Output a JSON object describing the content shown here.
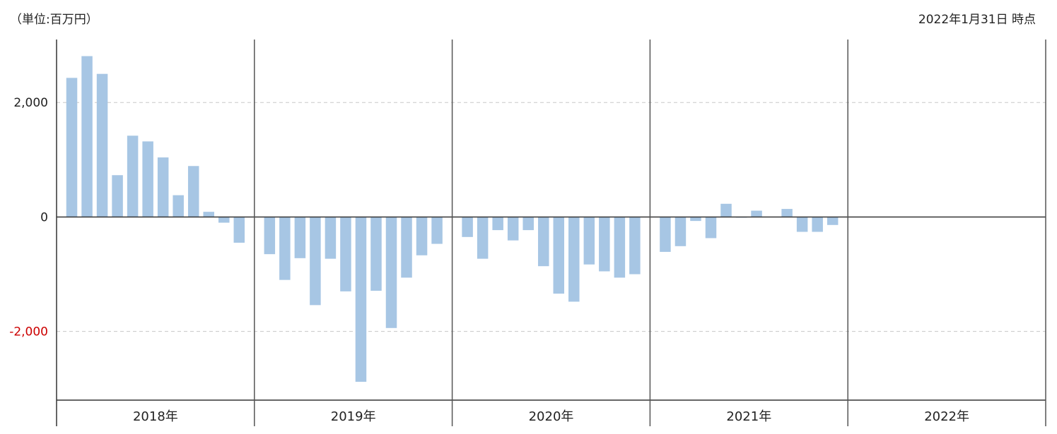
{
  "header": {
    "unit_label": "（単位:百万円）",
    "as_of_label": "2022年1月31日 時点"
  },
  "colors": {
    "bar": "#a7c6e4",
    "negative_tick": "#cc0000",
    "tick": "#222222",
    "grid": "#c8c8c8",
    "axis": "#333333",
    "year_divider": "#555555"
  },
  "chart_data": {
    "type": "bar",
    "title": "",
    "xlabel": "",
    "ylabel": "",
    "ylim": [
      -3200,
      3100
    ],
    "yticks": [
      {
        "value": 2000,
        "label": "2,000"
      },
      {
        "value": 0,
        "label": "0"
      },
      {
        "value": -2000,
        "label": "-2,000"
      }
    ],
    "grid": true,
    "legend": "none",
    "years": [
      "2018年",
      "2019年",
      "2020年",
      "2021年",
      "2022年"
    ],
    "months_per_year": 12,
    "series": [
      {
        "values": [
          2430,
          2810,
          2500,
          730,
          1420,
          1320,
          1040,
          380,
          890,
          90,
          -100,
          -450,
          -650,
          -1100,
          -720,
          -1540,
          -730,
          -1300,
          -2880,
          -1290,
          -1940,
          -1060,
          -670,
          -470,
          -350,
          -730,
          -230,
          -410,
          -230,
          -860,
          -1340,
          -1480,
          -830,
          -950,
          -1060,
          -1000,
          -610,
          -510,
          -70,
          -370,
          230,
          -10,
          110,
          null,
          140,
          -260,
          -260,
          -140,
          null,
          null,
          null,
          null,
          null,
          null,
          null,
          null,
          null,
          null,
          null,
          null
        ]
      }
    ]
  }
}
